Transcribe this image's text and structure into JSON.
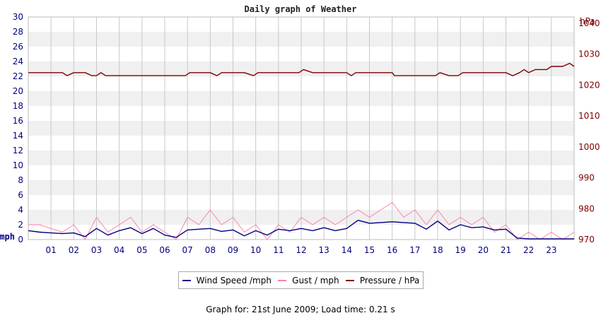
{
  "colors": {
    "left_axis": "#000080",
    "right_axis": "#800000",
    "wind_speed": "#000080",
    "gust": "#ff7fa8",
    "pressure": "#800000",
    "band_light": "#f0f0f0",
    "grid": "#c8c8c8"
  },
  "chart_data": {
    "type": "line",
    "title": "Daily graph of Weather",
    "footer": "Graph for: 21st June 2009; Load time: 0.21 s",
    "x_labels": [
      "01",
      "02",
      "03",
      "04",
      "05",
      "06",
      "07",
      "08",
      "09",
      "10",
      "11",
      "12",
      "13",
      "14",
      "15",
      "16",
      "17",
      "18",
      "19",
      "20",
      "21",
      "22",
      "23"
    ],
    "x_range": [
      0,
      24
    ],
    "left_axis": {
      "label": "mph",
      "ylim": [
        0,
        30
      ],
      "ticks": [
        0,
        2,
        4,
        6,
        8,
        10,
        12,
        14,
        16,
        18,
        20,
        22,
        24,
        26,
        28,
        30
      ]
    },
    "right_axis": {
      "label": "hPa",
      "ylim": [
        970,
        1042
      ],
      "ticks": [
        970,
        980,
        990,
        1000,
        1010,
        1020,
        1030,
        1040
      ]
    },
    "legend": [
      {
        "key": "wind_speed",
        "label": "Wind Speed /mph"
      },
      {
        "key": "gust",
        "label": "Gust / mph"
      },
      {
        "key": "pressure",
        "label": "Pressure / hPa"
      }
    ],
    "series": [
      {
        "name": "Wind Speed /mph",
        "axis": "left",
        "color_key": "wind_speed",
        "x": [
          0,
          0.5,
          1,
          1.5,
          2,
          2.5,
          3,
          3.5,
          4,
          4.5,
          5,
          5.5,
          6,
          6.5,
          7,
          7.5,
          8,
          8.5,
          9,
          9.5,
          10,
          10.5,
          11,
          11.5,
          12,
          12.5,
          13,
          13.5,
          14,
          14.5,
          15,
          15.5,
          16,
          16.5,
          17,
          17.5,
          18,
          18.5,
          19,
          19.5,
          20,
          20.5,
          21,
          21.5,
          22,
          22.5,
          23,
          23.5,
          24
        ],
        "values": [
          1.2,
          1.0,
          0.9,
          0.8,
          0.9,
          0.4,
          1.5,
          0.6,
          1.2,
          1.6,
          0.8,
          1.5,
          0.6,
          0.3,
          1.3,
          1.4,
          1.5,
          1.1,
          1.3,
          0.5,
          1.2,
          0.6,
          1.4,
          1.2,
          1.5,
          1.2,
          1.6,
          1.2,
          1.5,
          2.6,
          2.2,
          2.3,
          2.4,
          2.3,
          2.2,
          1.4,
          2.5,
          1.3,
          2.0,
          1.6,
          1.7,
          1.3,
          1.4,
          0.2,
          0.1,
          0.1,
          0.1,
          0.1,
          0.1
        ]
      },
      {
        "name": "Gust / mph",
        "axis": "left",
        "color_key": "gust",
        "x": [
          0,
          0.5,
          1,
          1.5,
          2,
          2.5,
          3,
          3.5,
          4,
          4.5,
          5,
          5.5,
          6,
          6.5,
          7,
          7.5,
          8,
          8.5,
          9,
          9.5,
          10,
          10.5,
          11,
          11.5,
          12,
          12.5,
          13,
          13.5,
          14,
          14.5,
          15,
          15.5,
          16,
          16.5,
          17,
          17.5,
          18,
          18.5,
          19,
          19.5,
          20,
          20.5,
          21,
          21.5,
          22,
          22.5,
          23,
          23.5,
          24
        ],
        "values": [
          2,
          2,
          1.5,
          1,
          2,
          0,
          3,
          1,
          2,
          3,
          1,
          2,
          1,
          0,
          3,
          2,
          4,
          2,
          3,
          1,
          2,
          0,
          2,
          1,
          3,
          2,
          3,
          2,
          3,
          4,
          3,
          4,
          5,
          3,
          4,
          2,
          4,
          2,
          3,
          2,
          3,
          1,
          2,
          0,
          1,
          0,
          1,
          0,
          1
        ]
      },
      {
        "name": "Pressure / hPa",
        "axis": "right",
        "color_key": "pressure",
        "x": [
          0,
          0.5,
          1,
          1.5,
          1.7,
          2,
          2.5,
          2.8,
          3,
          3.2,
          3.4,
          4,
          5,
          6,
          6.9,
          7.1,
          7.5,
          8,
          8.3,
          8.5,
          9,
          9.5,
          9.9,
          10.1,
          10.5,
          11,
          11.9,
          12.1,
          12.5,
          13,
          14,
          14.2,
          14.4,
          15,
          16,
          16.1,
          17,
          17.5,
          17.9,
          18.1,
          18.5,
          18.9,
          19.1,
          20,
          21,
          21.3,
          21.6,
          21.8,
          22,
          22.3,
          22.5,
          22.8,
          23,
          23.5,
          23.8,
          24
        ],
        "values": [
          1024,
          1024,
          1024,
          1024,
          1023,
          1024,
          1024,
          1023,
          1023,
          1024,
          1023,
          1023,
          1023,
          1023,
          1023,
          1024,
          1024,
          1024,
          1023,
          1024,
          1024,
          1024,
          1023,
          1024,
          1024,
          1024,
          1024,
          1025,
          1024,
          1024,
          1024,
          1023,
          1024,
          1024,
          1024,
          1023,
          1023,
          1023,
          1023,
          1024,
          1023,
          1023,
          1024,
          1024,
          1024,
          1023,
          1024,
          1025,
          1024,
          1025,
          1025,
          1025,
          1026,
          1026,
          1027,
          1026
        ]
      }
    ]
  }
}
